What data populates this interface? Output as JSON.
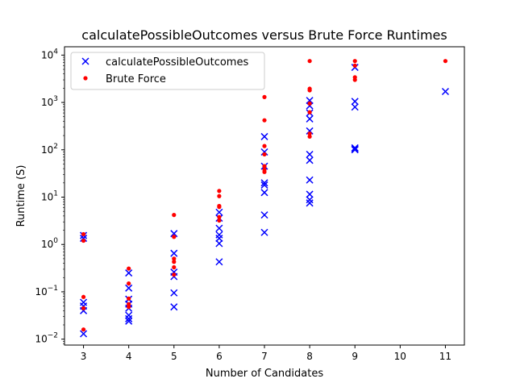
{
  "chart_data": {
    "type": "scatter",
    "title": "calculatePossibleOutcomes versus Brute Force Runtimes",
    "xlabel": "Number of Candidates",
    "ylabel": "Runtime (S)",
    "xlim": [
      2.58,
      11.42
    ],
    "ylim": [
      0.0075,
      15000
    ],
    "x_scale": "linear",
    "y_scale": "log",
    "grid": false,
    "legend_position": "top-left",
    "x_ticks": [
      3,
      4,
      5,
      6,
      7,
      8,
      9,
      10,
      11
    ],
    "x_tick_labels": [
      "3",
      "4",
      "5",
      "6",
      "7",
      "8",
      "9",
      "10",
      "11"
    ],
    "y_ticks": [
      0.01,
      0.1,
      1,
      10,
      100,
      1000,
      10000
    ],
    "y_tick_labels": [
      {
        "base": "10",
        "exp": "−2"
      },
      {
        "base": "10",
        "exp": "−1"
      },
      {
        "base": "10",
        "exp": "0"
      },
      {
        "base": "10",
        "exp": "1"
      },
      {
        "base": "10",
        "exp": "2"
      },
      {
        "base": "10",
        "exp": "3"
      },
      {
        "base": "10",
        "exp": "4"
      }
    ],
    "series": [
      {
        "name": "calculatePossibleOutcomes",
        "marker": "x",
        "color": "#0000ff",
        "points": [
          [
            3,
            1.55
          ],
          [
            3,
            1.35
          ],
          [
            3,
            0.06
          ],
          [
            3,
            0.05
          ],
          [
            3,
            0.04
          ],
          [
            3,
            0.013
          ],
          [
            4,
            0.25
          ],
          [
            4,
            0.12
          ],
          [
            4,
            0.07
          ],
          [
            4,
            0.055
          ],
          [
            4,
            0.045
          ],
          [
            4,
            0.032
          ],
          [
            4,
            0.027
          ],
          [
            4,
            0.024
          ],
          [
            5,
            1.7
          ],
          [
            5,
            0.65
          ],
          [
            5,
            0.26
          ],
          [
            5,
            0.21
          ],
          [
            5,
            0.095
          ],
          [
            5,
            0.048
          ],
          [
            6,
            4.8
          ],
          [
            6,
            3.6
          ],
          [
            6,
            2.2
          ],
          [
            6,
            1.6
          ],
          [
            6,
            1.35
          ],
          [
            6,
            1.05
          ],
          [
            6,
            0.43
          ],
          [
            7,
            190
          ],
          [
            7,
            90
          ],
          [
            7,
            45
          ],
          [
            7,
            20
          ],
          [
            7,
            18
          ],
          [
            7,
            12.5
          ],
          [
            7,
            4.2
          ],
          [
            7,
            1.8
          ],
          [
            8,
            1100
          ],
          [
            8,
            850
          ],
          [
            8,
            600
          ],
          [
            8,
            450
          ],
          [
            8,
            250
          ],
          [
            8,
            80
          ],
          [
            8,
            60
          ],
          [
            8,
            23
          ],
          [
            8,
            11.5
          ],
          [
            8,
            8.8
          ],
          [
            8,
            7.5
          ],
          [
            9,
            5500
          ],
          [
            9,
            1050
          ],
          [
            9,
            800
          ],
          [
            9,
            110
          ],
          [
            9,
            105
          ],
          [
            9,
            100
          ],
          [
            11,
            1700
          ]
        ]
      },
      {
        "name": "Brute Force",
        "marker": "dot",
        "color": "#ff0000",
        "points": [
          [
            3,
            1.65
          ],
          [
            3,
            1.2
          ],
          [
            3,
            0.078
          ],
          [
            3,
            0.045
          ],
          [
            3,
            0.016
          ],
          [
            4,
            0.31
          ],
          [
            4,
            0.15
          ],
          [
            4,
            0.072
          ],
          [
            4,
            0.055
          ],
          [
            4,
            0.048
          ],
          [
            5,
            4.2
          ],
          [
            5,
            1.45
          ],
          [
            5,
            0.5
          ],
          [
            5,
            0.43
          ],
          [
            5,
            0.33
          ],
          [
            5,
            0.23
          ],
          [
            6,
            13.5
          ],
          [
            6,
            10.5
          ],
          [
            6,
            6.5
          ],
          [
            6,
            6.2
          ],
          [
            6,
            3.8
          ],
          [
            6,
            3.2
          ],
          [
            7,
            1300
          ],
          [
            7,
            420
          ],
          [
            7,
            120
          ],
          [
            7,
            80
          ],
          [
            7,
            45
          ],
          [
            7,
            38
          ],
          [
            7,
            34
          ],
          [
            8,
            7500
          ],
          [
            8,
            1950
          ],
          [
            8,
            1800
          ],
          [
            8,
            950
          ],
          [
            8,
            620
          ],
          [
            8,
            220
          ],
          [
            8,
            190
          ],
          [
            9,
            7500
          ],
          [
            9,
            6000
          ],
          [
            9,
            3400
          ],
          [
            9,
            3000
          ],
          [
            11,
            7500
          ]
        ]
      }
    ]
  }
}
